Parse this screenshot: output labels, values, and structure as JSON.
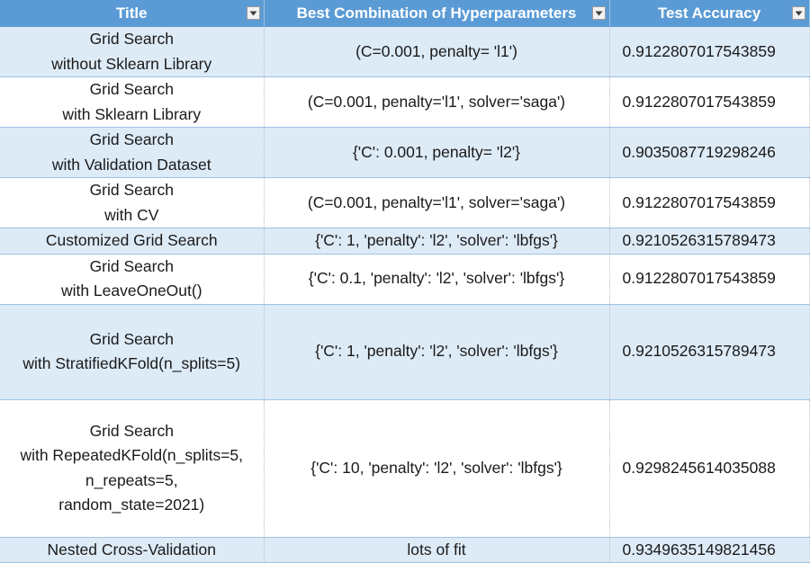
{
  "headers": [
    "Title",
    "Best Combination of Hyperparameters",
    "Test Accuracy"
  ],
  "rows": [
    {
      "title": [
        "Grid Search",
        "without Sklearn Library"
      ],
      "params": "(C=0.001, penalty= 'l1')",
      "accuracy": "0.9122807017543859"
    },
    {
      "title": [
        "Grid Search",
        "with Sklearn Library"
      ],
      "params": "(C=0.001, penalty='l1', solver='saga')",
      "accuracy": "0.9122807017543859"
    },
    {
      "title": [
        "Grid Search",
        "with Validation Dataset"
      ],
      "params": "{'C': 0.001, penalty= 'l2'}",
      "accuracy": "0.9035087719298246"
    },
    {
      "title": [
        "Grid Search",
        "with CV"
      ],
      "params": "(C=0.001, penalty='l1', solver='saga')",
      "accuracy": "0.9122807017543859"
    },
    {
      "title": [
        "Customized Grid Search"
      ],
      "params": "{'C': 1, 'penalty': 'l2', 'solver': 'lbfgs'}",
      "accuracy": "0.9210526315789473"
    },
    {
      "title": [
        "Grid Search",
        "with LeaveOneOut()"
      ],
      "params": "{'C': 0.1, 'penalty': 'l2', 'solver': 'lbfgs'}",
      "accuracy": "0.9122807017543859"
    },
    {
      "title": [
        "Grid Search",
        "with StratifiedKFold(n_splits=5)"
      ],
      "params": "{'C': 1, 'penalty': 'l2', 'solver': 'lbfgs'}",
      "accuracy": "0.9210526315789473"
    },
    {
      "title": [
        "Grid Search",
        "with RepeatedKFold(n_splits=5,",
        "n_repeats=5,",
        "random_state=2021)"
      ],
      "params": "{'C': 10, 'penalty': 'l2', 'solver': 'lbfgs'}",
      "accuracy": "0.9298245614035088"
    },
    {
      "title": [
        "Nested Cross-Validation"
      ],
      "params": "lots of fit",
      "accuracy": "0.9349635149821456"
    }
  ]
}
